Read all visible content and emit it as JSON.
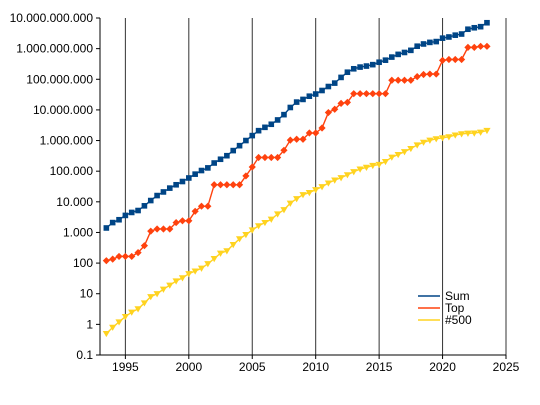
{
  "chart_data": {
    "type": "line",
    "title": "",
    "xlabel": "",
    "ylabel": "",
    "y_scale": "log",
    "xlim": [
      1993,
      2025
    ],
    "ylim": [
      0.1,
      10000000000
    ],
    "x_ticks": [
      1995,
      2000,
      2005,
      2010,
      2015,
      2020,
      2025
    ],
    "x_tick_labels": [
      "1995",
      "2000",
      "2005",
      "2010",
      "2015",
      "2020",
      "2025"
    ],
    "y_ticks": [
      0.1,
      1,
      10,
      100,
      1000,
      10000,
      100000,
      1000000,
      10000000,
      100000000,
      1000000000,
      10000000000
    ],
    "y_tick_labels": [
      "0.1",
      "1",
      "10",
      "100",
      "1.000",
      "10.000",
      "100.000",
      "1.000.000",
      "10.000.000",
      "100.000.000",
      "1.000.000.000",
      "10.000.000.000"
    ],
    "grid": {
      "x": true,
      "y": false
    },
    "legend_position": "bottom-right",
    "series": [
      {
        "name": "Sum",
        "color": "#004586",
        "marker": "square",
        "points": [
          [
            1993.5,
            1400
          ],
          [
            1994,
            2100
          ],
          [
            1994.5,
            2600
          ],
          [
            1995,
            3600
          ],
          [
            1995.5,
            4500
          ],
          [
            1996,
            5200
          ],
          [
            1996.5,
            7400
          ],
          [
            1997,
            11000
          ],
          [
            1997.5,
            16000
          ],
          [
            1998,
            21000
          ],
          [
            1998.5,
            28000
          ],
          [
            1999,
            36000
          ],
          [
            1999.5,
            46000
          ],
          [
            2000,
            60000
          ],
          [
            2000.5,
            80000
          ],
          [
            2001,
            105000
          ],
          [
            2001.5,
            128000
          ],
          [
            2002,
            185000
          ],
          [
            2002.5,
            245000
          ],
          [
            2003,
            320000
          ],
          [
            2003.5,
            470000
          ],
          [
            2004,
            680000
          ],
          [
            2004.5,
            1000000
          ],
          [
            2005,
            1450000
          ],
          [
            2005.5,
            2100000
          ],
          [
            2006,
            2700000
          ],
          [
            2006.5,
            3400000
          ],
          [
            2007,
            4700000
          ],
          [
            2007.5,
            7000000
          ],
          [
            2008,
            12000000
          ],
          [
            2008.5,
            18000000
          ],
          [
            2009,
            22000000
          ],
          [
            2009.5,
            28000000
          ],
          [
            2010,
            33000000
          ],
          [
            2010.5,
            43000000
          ],
          [
            2011,
            58000000
          ],
          [
            2011.5,
            75000000
          ],
          [
            2012,
            115000000
          ],
          [
            2012.5,
            170000000
          ],
          [
            2013,
            220000000
          ],
          [
            2013.5,
            250000000
          ],
          [
            2014,
            270000000
          ],
          [
            2014.5,
            300000000
          ],
          [
            2015,
            360000000
          ],
          [
            2015.5,
            420000000
          ],
          [
            2016,
            530000000
          ],
          [
            2016.5,
            650000000
          ],
          [
            2017,
            750000000
          ],
          [
            2017.5,
            880000000
          ],
          [
            2018,
            1200000000
          ],
          [
            2018.5,
            1420000000
          ],
          [
            2019,
            1600000000
          ],
          [
            2019.5,
            1700000000
          ],
          [
            2020,
            2200000000
          ],
          [
            2020.5,
            2400000000
          ],
          [
            2021,
            2750000000
          ],
          [
            2021.5,
            3000000000
          ],
          [
            2022,
            4300000000
          ],
          [
            2022.5,
            4800000000
          ],
          [
            2023,
            5200000000
          ],
          [
            2023.5,
            7000000000
          ]
        ]
      },
      {
        "name": "Top",
        "color": "#ff420e",
        "marker": "diamond",
        "points": [
          [
            1993.5,
            120
          ],
          [
            1994,
            135
          ],
          [
            1994.5,
            165
          ],
          [
            1995,
            165
          ],
          [
            1995.5,
            165
          ],
          [
            1996,
            220
          ],
          [
            1996.5,
            370
          ],
          [
            1997,
            1100
          ],
          [
            1997.5,
            1300
          ],
          [
            1998,
            1300
          ],
          [
            1998.5,
            1300
          ],
          [
            1999,
            2100
          ],
          [
            1999.5,
            2400
          ],
          [
            2000,
            2400
          ],
          [
            2000.5,
            4900
          ],
          [
            2001,
            7200
          ],
          [
            2001.5,
            7200
          ],
          [
            2002,
            36000
          ],
          [
            2002.5,
            36000
          ],
          [
            2003,
            36000
          ],
          [
            2003.5,
            36000
          ],
          [
            2004,
            36000
          ],
          [
            2004.5,
            70000
          ],
          [
            2005,
            137000
          ],
          [
            2005.5,
            280000
          ],
          [
            2006,
            280000
          ],
          [
            2006.5,
            280000
          ],
          [
            2007,
            280000
          ],
          [
            2007.5,
            480000
          ],
          [
            2008,
            1030000
          ],
          [
            2008.5,
            1100000
          ],
          [
            2009,
            1100000
          ],
          [
            2009.5,
            1760000
          ],
          [
            2010,
            1760000
          ],
          [
            2010.5,
            2570000
          ],
          [
            2011,
            8200000
          ],
          [
            2011.5,
            10500000
          ],
          [
            2012,
            16300000
          ],
          [
            2012.5,
            17600000
          ],
          [
            2013,
            33900000
          ],
          [
            2013.5,
            33900000
          ],
          [
            2014,
            33900000
          ],
          [
            2014.5,
            33900000
          ],
          [
            2015,
            33900000
          ],
          [
            2015.5,
            33900000
          ],
          [
            2016,
            93000000
          ],
          [
            2016.5,
            93000000
          ],
          [
            2017,
            93000000
          ],
          [
            2017.5,
            93000000
          ],
          [
            2018,
            122000000
          ],
          [
            2018.5,
            143000000
          ],
          [
            2019,
            148000000
          ],
          [
            2019.5,
            148000000
          ],
          [
            2020,
            415000000
          ],
          [
            2020.5,
            442000000
          ],
          [
            2021,
            442000000
          ],
          [
            2021.5,
            442000000
          ],
          [
            2022,
            1100000000
          ],
          [
            2022.5,
            1100000000
          ],
          [
            2023,
            1190000000
          ],
          [
            2023.5,
            1190000000
          ]
        ]
      },
      {
        "name": "#500",
        "color": "#ffd320",
        "marker": "triangle",
        "points": [
          [
            1993.5,
            0.5
          ],
          [
            1994,
            0.8
          ],
          [
            1994.5,
            1.2
          ],
          [
            1995,
            1.8
          ],
          [
            1995.5,
            2.5
          ],
          [
            1996,
            3.2
          ],
          [
            1996.5,
            5
          ],
          [
            1997,
            8
          ],
          [
            1997.5,
            10
          ],
          [
            1998,
            14
          ],
          [
            1998.5,
            19
          ],
          [
            1999,
            26
          ],
          [
            1999.5,
            33
          ],
          [
            2000,
            45
          ],
          [
            2000.5,
            55
          ],
          [
            2001,
            68
          ],
          [
            2001.5,
            95
          ],
          [
            2002,
            140
          ],
          [
            2002.5,
            210
          ],
          [
            2003,
            250
          ],
          [
            2003.5,
            400
          ],
          [
            2004,
            620
          ],
          [
            2004.5,
            850
          ],
          [
            2005,
            1200
          ],
          [
            2005.5,
            1650
          ],
          [
            2006,
            2100
          ],
          [
            2006.5,
            2700
          ],
          [
            2007,
            4000
          ],
          [
            2007.5,
            5500
          ],
          [
            2008,
            9000
          ],
          [
            2008.5,
            12600
          ],
          [
            2009,
            17100
          ],
          [
            2009.5,
            20000
          ],
          [
            2010,
            24700
          ],
          [
            2010.5,
            31000
          ],
          [
            2011,
            41000
          ],
          [
            2011.5,
            51000
          ],
          [
            2012,
            61000
          ],
          [
            2012.5,
            76000
          ],
          [
            2013,
            96000
          ],
          [
            2013.5,
            117000
          ],
          [
            2014,
            133000
          ],
          [
            2014.5,
            153000
          ],
          [
            2015,
            165000
          ],
          [
            2015.5,
            206000
          ],
          [
            2016,
            286000
          ],
          [
            2016.5,
            349000
          ],
          [
            2017,
            432000
          ],
          [
            2017.5,
            548000
          ],
          [
            2018,
            716000
          ],
          [
            2018.5,
            874000
          ],
          [
            2019,
            1020000
          ],
          [
            2019.5,
            1140000
          ],
          [
            2020,
            1230000
          ],
          [
            2020.5,
            1320000
          ],
          [
            2021,
            1510000
          ],
          [
            2021.5,
            1650000
          ],
          [
            2022,
            1730000
          ],
          [
            2022.5,
            1750000
          ],
          [
            2023,
            1870000
          ],
          [
            2023.5,
            2130000
          ]
        ]
      }
    ]
  }
}
